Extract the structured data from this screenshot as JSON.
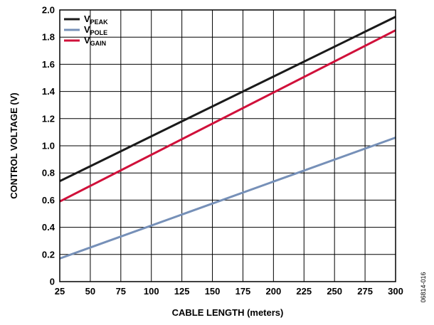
{
  "chart_data": {
    "type": "line",
    "title": "",
    "xlabel": "CABLE LENGTH (meters)",
    "ylabel": "CONTROL VOLTAGE (V)",
    "xlim": [
      25,
      300
    ],
    "ylim": [
      0,
      2.0
    ],
    "x_ticks": [
      25,
      50,
      75,
      100,
      125,
      150,
      175,
      200,
      225,
      250,
      275,
      300
    ],
    "x_tick_labels": [
      "25",
      "50",
      "75",
      "100",
      "125",
      "150",
      "175",
      "200",
      "225",
      "250",
      "275",
      "300"
    ],
    "y_ticks": [
      0,
      0.2,
      0.4,
      0.6,
      0.8,
      1.0,
      1.2,
      1.4,
      1.6,
      1.8,
      2.0
    ],
    "y_tick_labels": [
      "0",
      "0.2",
      "0.4",
      "0.6",
      "0.8",
      "1.0",
      "1.2",
      "1.4",
      "1.6",
      "1.8",
      "2.0"
    ],
    "grid": true,
    "legend_position": "top-left",
    "series": [
      {
        "name": "V",
        "name_sub": "PEAK",
        "color": "#1a1a1a",
        "x": [
          25,
          300
        ],
        "y": [
          0.74,
          1.95
        ]
      },
      {
        "name": "V",
        "name_sub": "POLE",
        "color": "#7690b8",
        "x": [
          25,
          300
        ],
        "y": [
          0.17,
          1.06
        ]
      },
      {
        "name": "V",
        "name_sub": "GAIN",
        "color": "#d0103a",
        "x": [
          25,
          300
        ],
        "y": [
          0.59,
          1.85
        ]
      }
    ],
    "figure_id": "06814-016"
  }
}
